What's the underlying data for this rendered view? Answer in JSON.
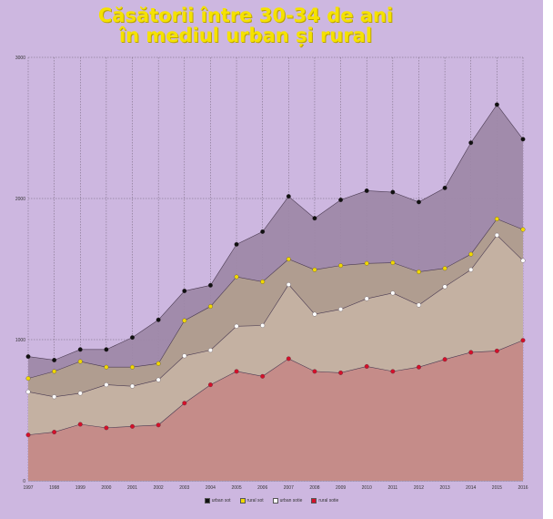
{
  "title_lines": [
    "Căsătorii între 30-34 de ani",
    "în mediul urban și rural"
  ],
  "chart_data": {
    "type": "area",
    "title": "Căsătorii între 30-34 de ani în mediul urban și rural",
    "xlabel": "",
    "ylabel": "",
    "ylim": [
      0,
      3000
    ],
    "yticks": [
      "0",
      "1000",
      "2000",
      "3000"
    ],
    "categories": [
      "1997",
      "1998",
      "1999",
      "2000",
      "2001",
      "2002",
      "2003",
      "2004",
      "2005",
      "2006",
      "2007",
      "2008",
      "2009",
      "2010",
      "2011",
      "2012",
      "2013",
      "2014",
      "2015",
      "2016"
    ],
    "series": [
      {
        "name": "urban sot",
        "color": "#9e88a8",
        "marker": "#111111",
        "values": [
          880,
          855,
          930,
          930,
          1015,
          1140,
          1345,
          1385,
          1675,
          1765,
          2015,
          1860,
          1990,
          2055,
          2045,
          1975,
          2075,
          2395,
          2665,
          2420
        ]
      },
      {
        "name": "rural sot",
        "color": "#b19e8e",
        "marker": "#f0d800",
        "values": [
          725,
          775,
          845,
          805,
          805,
          830,
          1135,
          1235,
          1445,
          1410,
          1570,
          1495,
          1525,
          1540,
          1545,
          1480,
          1505,
          1605,
          1855,
          1780
        ]
      },
      {
        "name": "urban sotie",
        "color": "#c5b2a3",
        "marker": "#ffffff",
        "values": [
          630,
          595,
          620,
          680,
          670,
          715,
          885,
          925,
          1095,
          1100,
          1390,
          1180,
          1215,
          1290,
          1330,
          1245,
          1375,
          1495,
          1740,
          1560
        ]
      },
      {
        "name": "rural sotie",
        "color": "#c58a88",
        "marker": "#d4102a",
        "values": [
          325,
          345,
          400,
          375,
          385,
          395,
          550,
          680,
          775,
          740,
          865,
          775,
          765,
          810,
          775,
          805,
          860,
          910,
          920,
          995
        ]
      }
    ],
    "legend_position": "bottom-center",
    "grid": true
  }
}
